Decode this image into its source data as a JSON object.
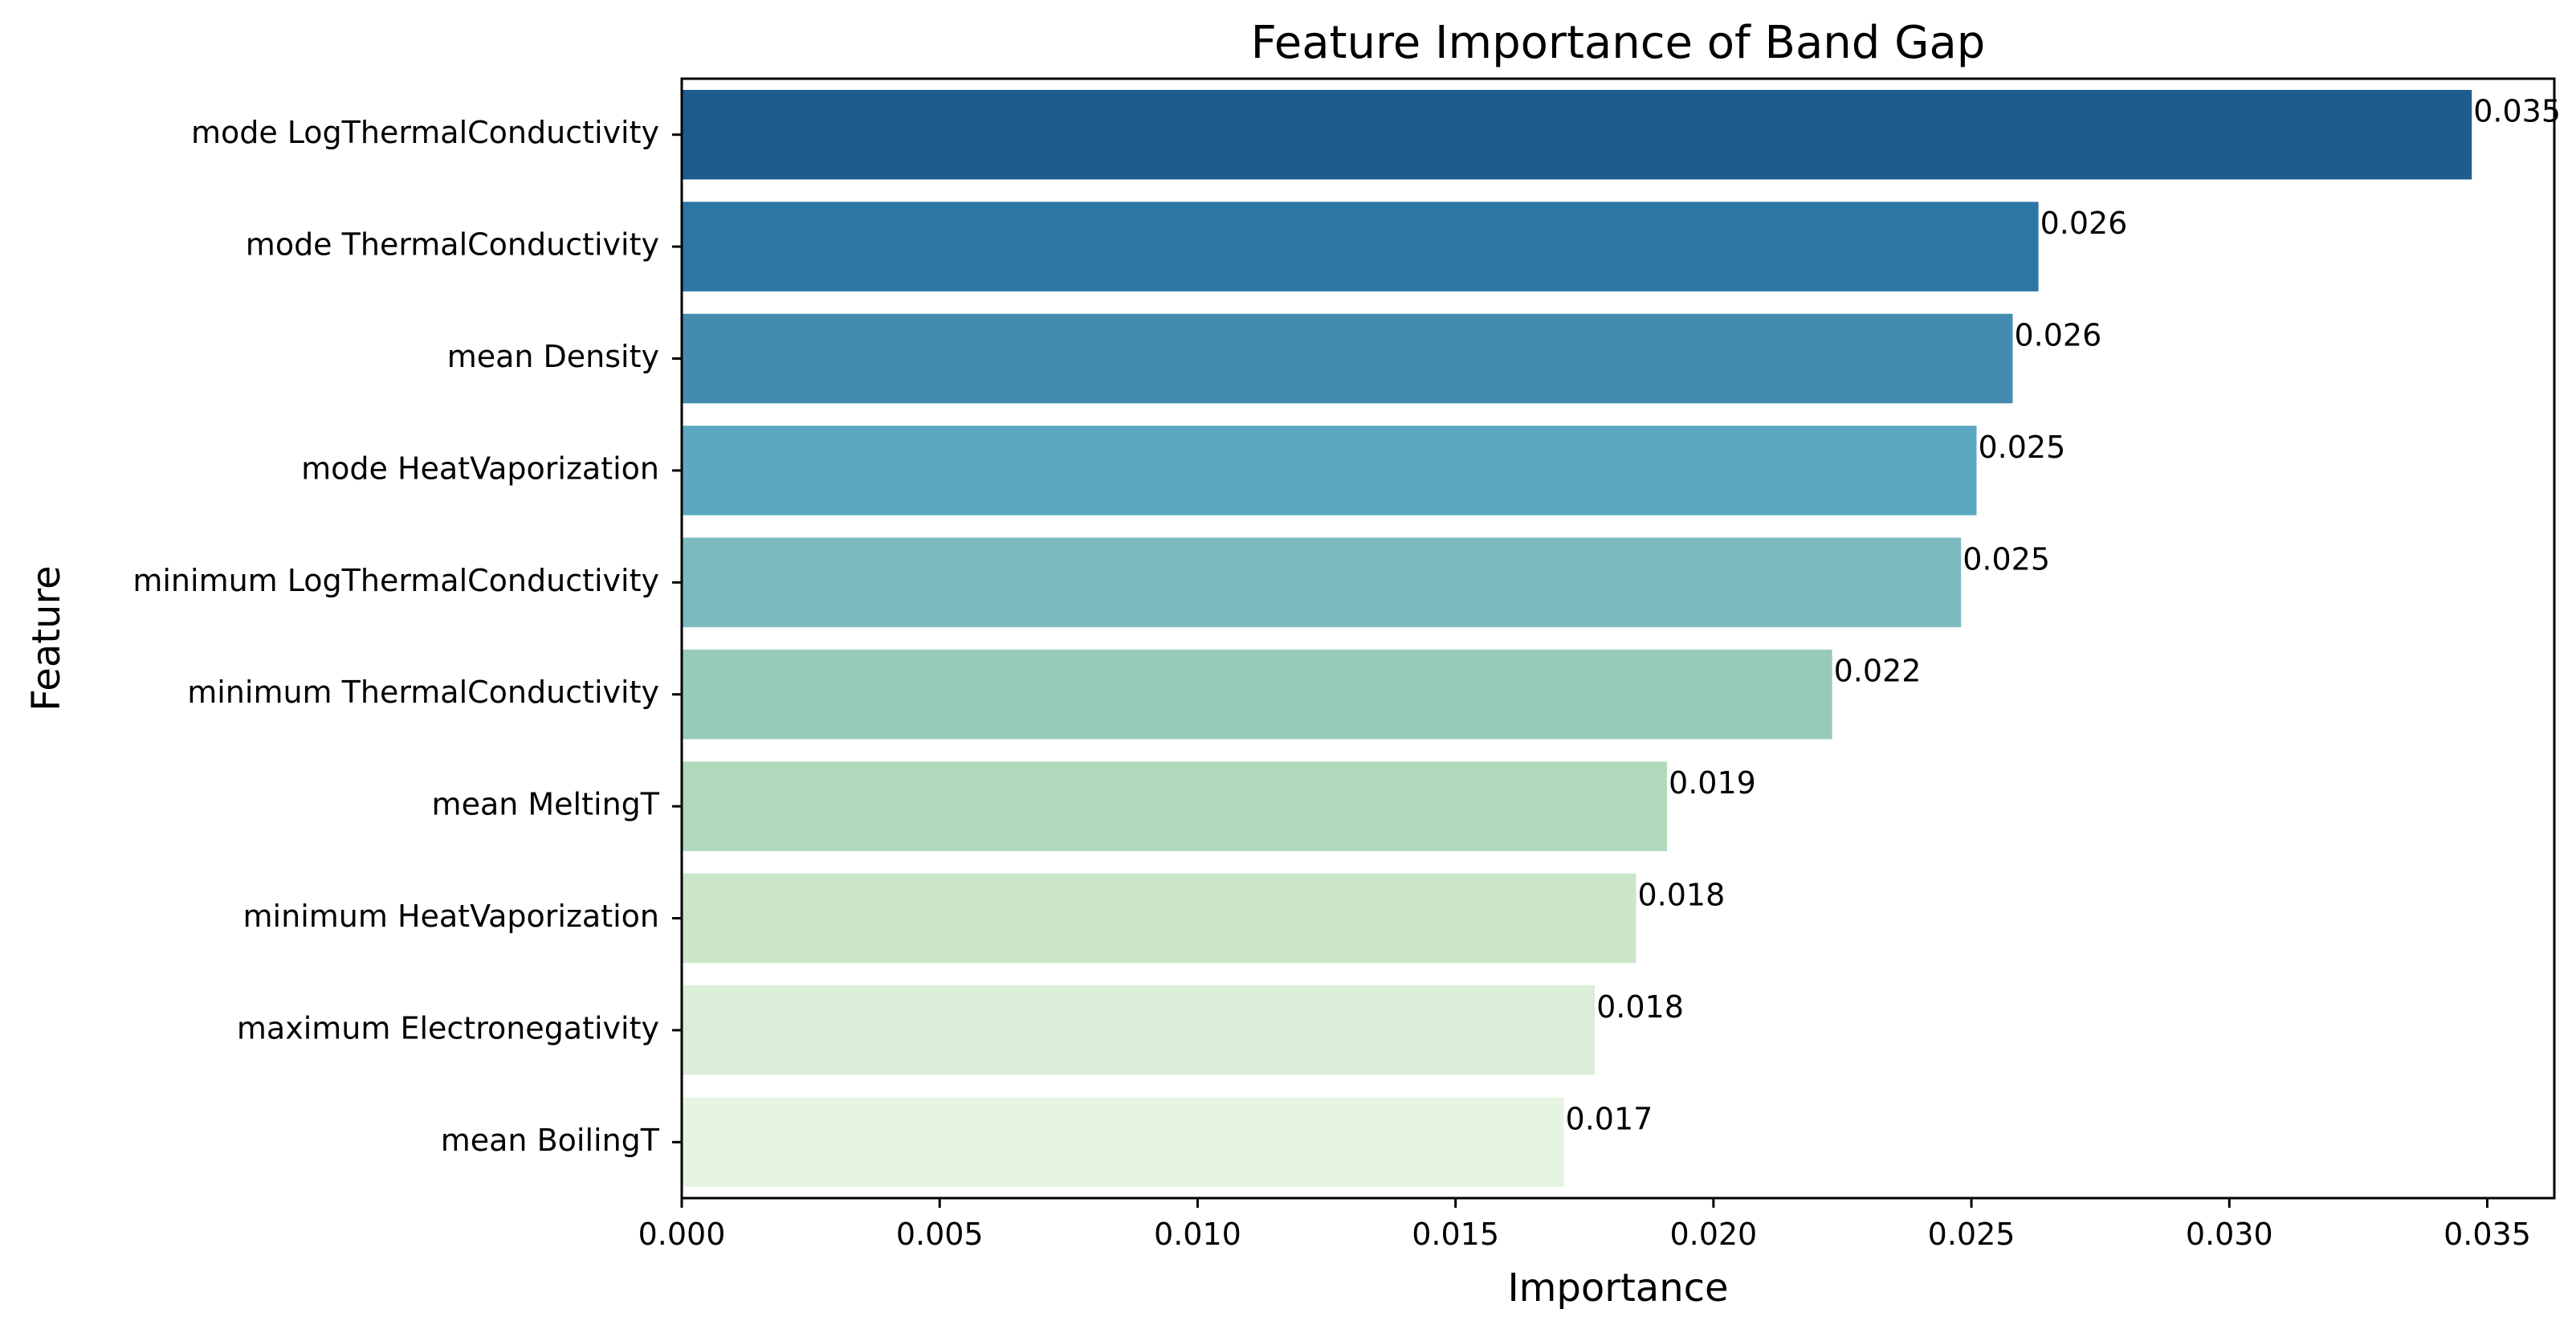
{
  "chart_data": {
    "type": "bar",
    "orientation": "horizontal",
    "title": "Feature Importance of Band Gap",
    "xlabel": "Importance",
    "ylabel": "Feature",
    "xlim": [
      0,
      0.0363
    ],
    "xticks": [
      0.0,
      0.005,
      0.01,
      0.015,
      0.02,
      0.025,
      0.03,
      0.035
    ],
    "xtick_labels": [
      "0.000",
      "0.005",
      "0.010",
      "0.015",
      "0.020",
      "0.025",
      "0.030",
      "0.035"
    ],
    "grid": false,
    "legend": "none",
    "categories": [
      "mode LogThermalConductivity",
      "mode ThermalConductivity",
      "mean Density",
      "mode HeatVaporization",
      "minimum LogThermalConductivity",
      "minimum ThermalConductivity",
      "mean MeltingT",
      "minimum HeatVaporization",
      "maximum Electronegativity",
      "mean BoilingT"
    ],
    "values": [
      0.0347,
      0.0263,
      0.0258,
      0.0251,
      0.0248,
      0.0223,
      0.0191,
      0.0185,
      0.0177,
      0.0171
    ],
    "data_labels": [
      "0.035",
      "0.026",
      "0.026",
      "0.025",
      "0.025",
      "0.022",
      "0.019",
      "0.018",
      "0.018",
      "0.017"
    ],
    "colors": [
      "#1f5c8e",
      "#2c76a3",
      "#438cb0",
      "#5ca8c2",
      "#7bbbbf",
      "#96cabb",
      "#b1d9bb",
      "#cbe5c9",
      "#daeed7",
      "#e8f4e2"
    ]
  }
}
